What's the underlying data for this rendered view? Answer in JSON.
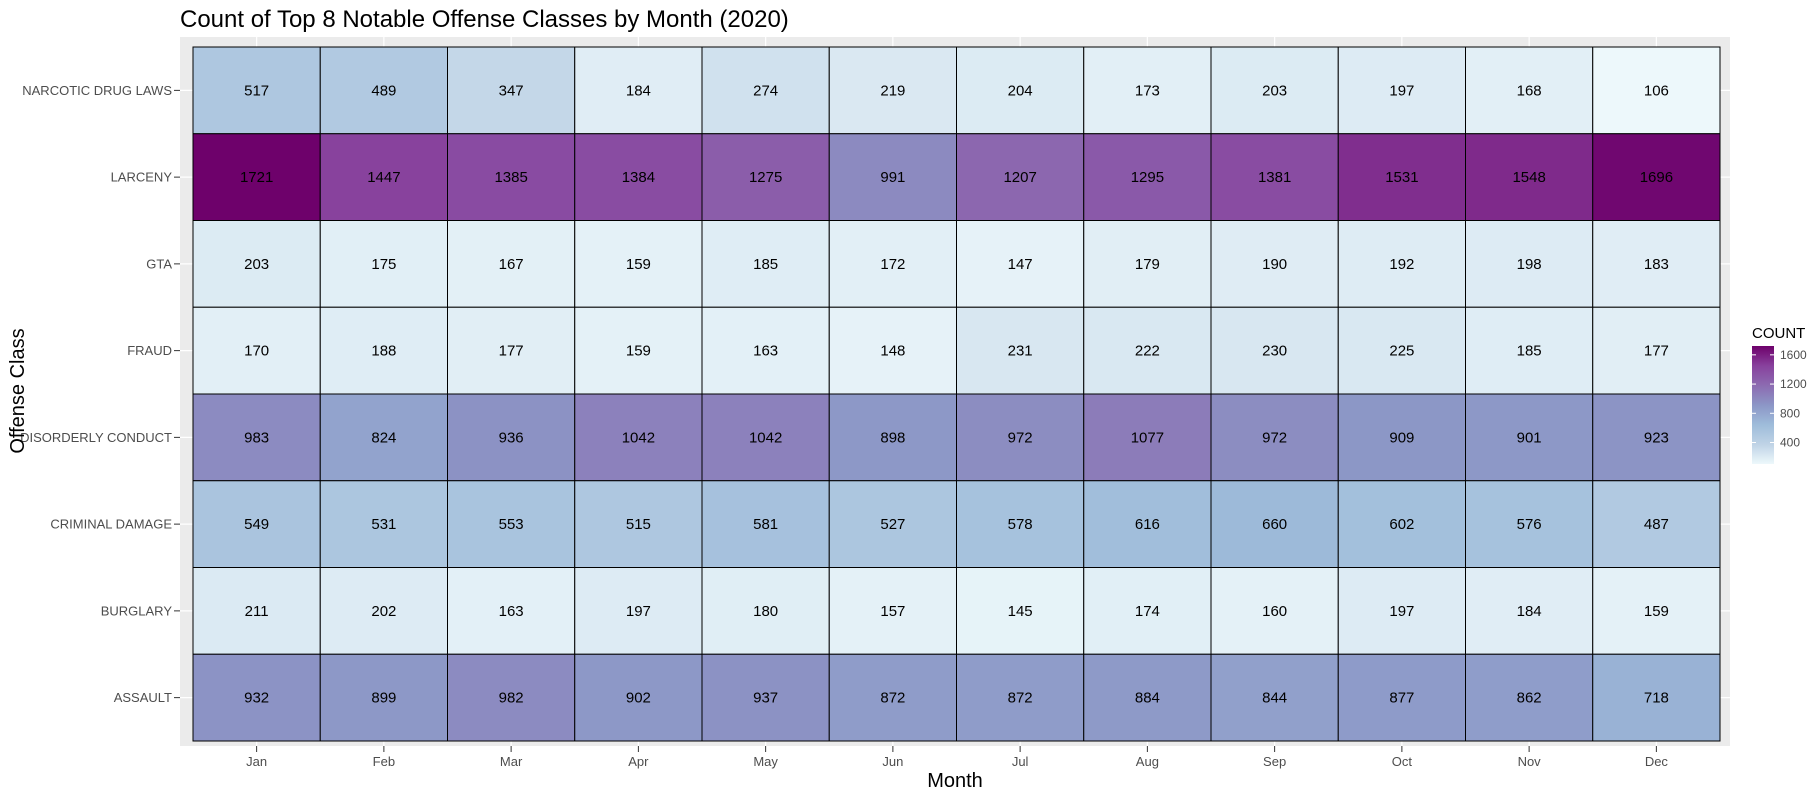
{
  "chart_data": {
    "type": "heatmap",
    "title": "Count of Top 8 Notable Offense Classes by Month (2020)",
    "xlabel": "Month",
    "ylabel": "Offense Class",
    "x_categories": [
      "Jan",
      "Feb",
      "Mar",
      "Apr",
      "May",
      "Jun",
      "Jul",
      "Aug",
      "Sep",
      "Oct",
      "Nov",
      "Dec"
    ],
    "y_categories": [
      "NARCOTIC DRUG LAWS",
      "LARCENY",
      "GTA",
      "FRAUD",
      "DISORDERLY CONDUCT",
      "CRIMINAL DAMAGE",
      "BURGLARY",
      "ASSAULT"
    ],
    "values": [
      [
        517,
        489,
        347,
        184,
        274,
        219,
        204,
        173,
        203,
        197,
        168,
        106
      ],
      [
        1721,
        1447,
        1385,
        1384,
        1275,
        991,
        1207,
        1295,
        1381,
        1531,
        1548,
        1696
      ],
      [
        203,
        175,
        167,
        159,
        185,
        172,
        147,
        179,
        190,
        192,
        198,
        183
      ],
      [
        170,
        188,
        177,
        159,
        163,
        148,
        231,
        222,
        230,
        225,
        185,
        177
      ],
      [
        983,
        824,
        936,
        1042,
        1042,
        898,
        972,
        1077,
        972,
        909,
        901,
        923
      ],
      [
        549,
        531,
        553,
        515,
        581,
        527,
        578,
        616,
        660,
        602,
        576,
        487
      ],
      [
        211,
        202,
        163,
        197,
        180,
        157,
        145,
        174,
        160,
        197,
        184,
        159
      ],
      [
        932,
        899,
        982,
        902,
        937,
        872,
        872,
        884,
        844,
        877,
        862,
        718
      ]
    ],
    "legend": {
      "title": "COUNT",
      "position": "right",
      "ticks": [
        400,
        800,
        1200,
        1600
      ],
      "range": [
        106,
        1721
      ],
      "palette": "BuPu",
      "colors": [
        "#edf8fb",
        "#bfd3e6",
        "#9ebcda",
        "#8c96c6",
        "#8c6bb1",
        "#88419d",
        "#6e016b"
      ]
    },
    "grid": true,
    "panel_background": "#ebebeb",
    "cell_border": "#000000"
  }
}
